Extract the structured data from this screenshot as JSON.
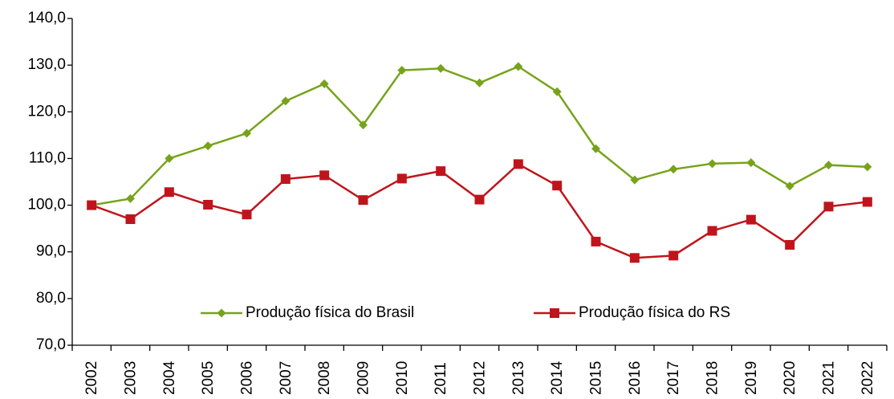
{
  "chart_data": {
    "type": "line",
    "categories": [
      "2002",
      "2003",
      "2004",
      "2005",
      "2006",
      "2007",
      "2008",
      "2009",
      "2010",
      "2011",
      "2012",
      "2013",
      "2014",
      "2015",
      "2016",
      "2017",
      "2018",
      "2019",
      "2020",
      "2021",
      "2022"
    ],
    "series": [
      {
        "name": "Produção física do Brasil",
        "color": "#77a31a",
        "marker": "diamond",
        "values": [
          100.0,
          101.4,
          110.0,
          112.7,
          115.4,
          122.3,
          126.0,
          117.2,
          128.9,
          129.3,
          126.2,
          129.7,
          124.3,
          112.1,
          105.4,
          107.7,
          108.9,
          109.1,
          104.1,
          108.6,
          108.2
        ]
      },
      {
        "name": "Produção física do RS",
        "color": "#c0141c",
        "marker": "square",
        "values": [
          100.0,
          97.0,
          102.8,
          100.1,
          98.0,
          105.6,
          106.4,
          101.1,
          105.7,
          107.3,
          101.2,
          108.8,
          104.2,
          92.2,
          88.7,
          89.2,
          94.5,
          96.9,
          91.5,
          99.7,
          100.7
        ]
      }
    ],
    "ylim": [
      70,
      140
    ],
    "yticks": [
      {
        "value": 70,
        "label": "70,0"
      },
      {
        "value": 80,
        "label": "80,0"
      },
      {
        "value": 90,
        "label": "90,0"
      },
      {
        "value": 100,
        "label": "100,0"
      },
      {
        "value": 110,
        "label": "110,0"
      },
      {
        "value": 120,
        "label": "120,0"
      },
      {
        "value": 130,
        "label": "130,0"
      },
      {
        "value": 140,
        "label": "140,0"
      }
    ],
    "grid": false,
    "legend": "bottom"
  }
}
